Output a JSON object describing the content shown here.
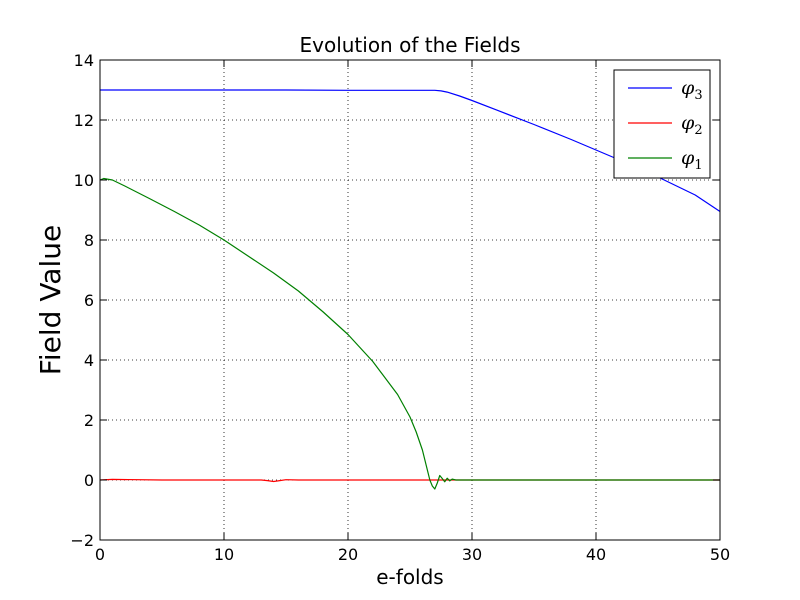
{
  "chart_data": {
    "type": "line",
    "title": "Evolution of the Fields",
    "xlabel": "e-folds",
    "ylabel": "Field Value",
    "xlim": [
      0,
      50
    ],
    "ylim": [
      -2,
      14
    ],
    "xticks": [
      0,
      10,
      20,
      30,
      40,
      50
    ],
    "yticks": [
      -2,
      0,
      2,
      4,
      6,
      8,
      10,
      12,
      14
    ],
    "xtick_labels": [
      "0",
      "10",
      "20",
      "30",
      "40",
      "50"
    ],
    "ytick_labels": [
      "−2",
      "0",
      "2",
      "4",
      "6",
      "8",
      "10",
      "12",
      "14"
    ],
    "grid": true,
    "legend_position": "top-right",
    "series": [
      {
        "name": "φ3",
        "label_base": "φ",
        "label_sub": "3",
        "color": "#0000ff",
        "x": [
          0,
          5,
          10,
          15,
          20,
          25,
          26,
          27,
          27.5,
          28,
          29,
          30,
          32,
          35,
          38,
          40,
          42,
          45,
          48,
          50
        ],
        "y": [
          13.0,
          13.0,
          13.0,
          13.0,
          12.99,
          12.99,
          12.99,
          12.99,
          12.97,
          12.93,
          12.8,
          12.65,
          12.33,
          11.85,
          11.35,
          11.0,
          10.65,
          10.1,
          9.5,
          8.95
        ]
      },
      {
        "name": "φ2",
        "label_base": "φ",
        "label_sub": "2",
        "color": "#ff0000",
        "x": [
          0,
          1,
          5,
          10,
          13,
          13.5,
          14,
          14.5,
          15,
          16,
          20,
          25,
          27,
          28,
          30,
          35,
          40,
          45,
          50
        ],
        "y": [
          0.0,
          0.02,
          0.0,
          0.0,
          0.0,
          -0.02,
          -0.05,
          -0.02,
          0.01,
          0.0,
          0.0,
          0.0,
          0.0,
          0.0,
          0.0,
          0.0,
          0.0,
          0.0,
          0.0
        ]
      },
      {
        "name": "φ1",
        "label_base": "φ",
        "label_sub": "1",
        "color": "#008000",
        "x": [
          0,
          0.3,
          1,
          2,
          4,
          6,
          8,
          10,
          12,
          14,
          16,
          18,
          20,
          22,
          24,
          25,
          25.5,
          26,
          26.3,
          26.6,
          26.8,
          27.0,
          27.2,
          27.4,
          27.6,
          27.8,
          28.0,
          28.2,
          28.4,
          28.7,
          29,
          30,
          35,
          40,
          45,
          50
        ],
        "y": [
          10.0,
          10.05,
          10.0,
          9.8,
          9.38,
          8.95,
          8.5,
          8.0,
          7.45,
          6.9,
          6.3,
          5.6,
          4.85,
          3.95,
          2.85,
          2.1,
          1.6,
          1.0,
          0.5,
          0.0,
          -0.2,
          -0.3,
          -0.1,
          0.15,
          0.05,
          -0.06,
          0.06,
          -0.03,
          0.03,
          0.0,
          0.0,
          0.0,
          0.0,
          0.0,
          0.0,
          0.0
        ]
      }
    ]
  }
}
